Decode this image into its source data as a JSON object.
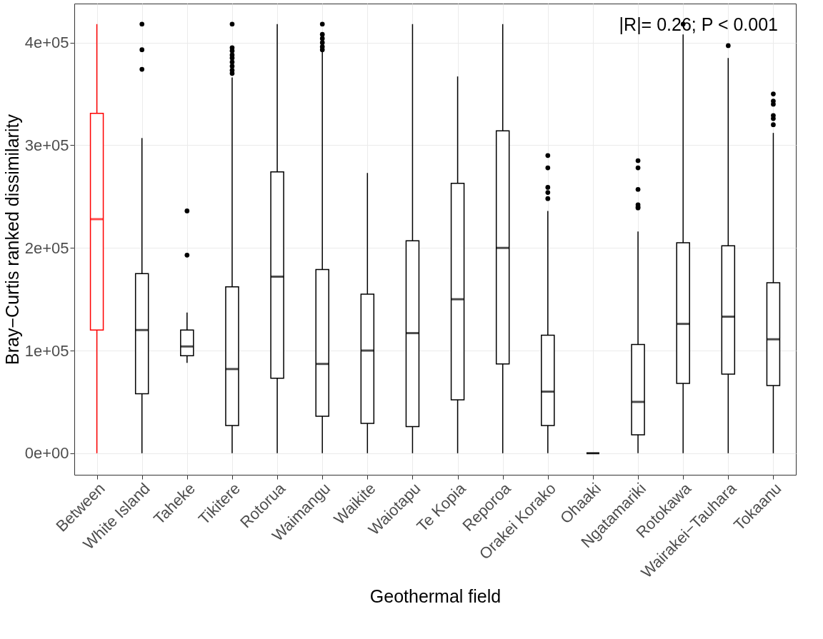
{
  "chart_data": {
    "type": "box",
    "xlabel": "Geothermal field",
    "ylabel": "Bray−Curtis ranked dissimilarity",
    "categories": [
      "Between",
      "White Island",
      "Taheke",
      "Tikitere",
      "Rotorua",
      "Waimangu",
      "Waikite",
      "Waiotapu",
      "Te Kopia",
      "Reporoa",
      "Orakei Korako",
      "Ohaaki",
      "Ngatamariki",
      "Rotokawa",
      "Wairakei−Tauhara",
      "Tokaanu"
    ],
    "colors": [
      "#ff0000",
      "#000000",
      "#000000",
      "#000000",
      "#000000",
      "#000000",
      "#000000",
      "#000000",
      "#000000",
      "#000000",
      "#000000",
      "#000000",
      "#000000",
      "#000000",
      "#000000",
      "#000000"
    ],
    "boxes": [
      {
        "low": 0,
        "q1": 120000,
        "median": 228000,
        "q3": 331000,
        "high": 418000
      },
      {
        "low": 0,
        "q1": 58000,
        "median": 120000,
        "q3": 175000,
        "high": 307000,
        "outliers": [
          418000,
          393000,
          374000
        ]
      },
      {
        "low": 88000,
        "q1": 95000,
        "median": 104000,
        "q3": 120000,
        "high": 137000,
        "outliers": [
          236000,
          193000
        ]
      },
      {
        "low": 0,
        "q1": 27000,
        "median": 82000,
        "q3": 162000,
        "high": 366000,
        "outliers": [
          418000,
          395000,
          392000,
          388000,
          385000,
          381000,
          377000,
          373000,
          370000
        ]
      },
      {
        "low": 0,
        "q1": 73000,
        "median": 172000,
        "q3": 274000,
        "high": 418000
      },
      {
        "low": 0,
        "q1": 36000,
        "median": 87000,
        "q3": 179000,
        "high": 391000,
        "outliers": [
          418000,
          408000,
          404000,
          400000,
          396000,
          393000
        ]
      },
      {
        "low": 0,
        "q1": 29000,
        "median": 100000,
        "q3": 155000,
        "high": 273000
      },
      {
        "low": 0,
        "q1": 26000,
        "median": 117000,
        "q3": 207000,
        "high": 418000
      },
      {
        "low": 0,
        "q1": 52000,
        "median": 150000,
        "q3": 263000,
        "high": 367000
      },
      {
        "low": 0,
        "q1": 87000,
        "median": 200000,
        "q3": 314000,
        "high": 418000
      },
      {
        "low": 0,
        "q1": 27000,
        "median": 60000,
        "q3": 115000,
        "high": 236000,
        "outliers": [
          290000,
          278000,
          259000,
          254000,
          248000
        ]
      },
      {
        "low": 0,
        "q1": 0,
        "median": 0,
        "q3": 0,
        "high": 0
      },
      {
        "low": 0,
        "q1": 18000,
        "median": 50000,
        "q3": 106000,
        "high": 216000,
        "outliers": [
          285000,
          278000,
          257000,
          242000,
          240000,
          239000
        ]
      },
      {
        "low": 0,
        "q1": 68000,
        "median": 126000,
        "q3": 205000,
        "high": 408000,
        "outliers": [
          418000
        ]
      },
      {
        "low": 0,
        "q1": 77000,
        "median": 133000,
        "q3": 202000,
        "high": 385000,
        "outliers": [
          397000
        ]
      },
      {
        "low": 0,
        "q1": 66000,
        "median": 111000,
        "q3": 166000,
        "high": 312000,
        "outliers": [
          350000,
          343000,
          340000,
          329000,
          326000,
          320000
        ]
      }
    ],
    "ylim": [
      -21000,
      438000
    ],
    "yticks": [
      {
        "value": 0,
        "label": "0e+00"
      },
      {
        "value": 100000,
        "label": "1e+05"
      },
      {
        "value": 200000,
        "label": "2e+05"
      },
      {
        "value": 300000,
        "label": "3e+05"
      },
      {
        "value": 400000,
        "label": "4e+05"
      }
    ],
    "annotations": [
      "|R|= 0.26; P < 0.001"
    ],
    "grid": true
  }
}
